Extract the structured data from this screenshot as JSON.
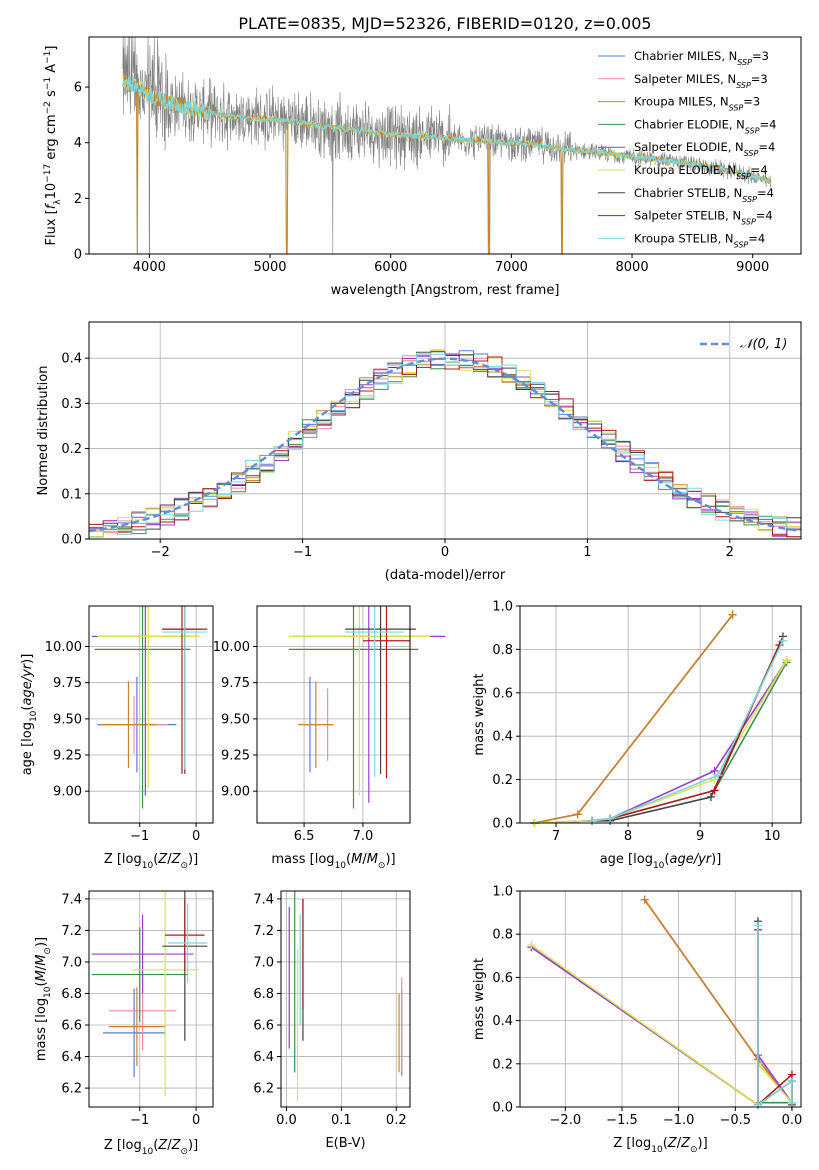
{
  "figure_title": "PLATE=0835, MJD=52326, FIBERID=0120, z=0.005",
  "series_styles": [
    {
      "name": "Chabrier MILES, N",
      "sub": "SSP",
      "suffix": "=3",
      "color": "#5b7bd5"
    },
    {
      "name": "Salpeter MILES, N",
      "sub": "SSP",
      "suffix": "=3",
      "color": "#f08aa6"
    },
    {
      "name": "Kroupa MILES, N",
      "sub": "SSP",
      "suffix": "=3",
      "color": "#c8842c"
    },
    {
      "name": "Chabrier ELODIE, N",
      "sub": "SSP",
      "suffix": "=4",
      "color": "#3f8f50"
    },
    {
      "name": "Salpeter ELODIE, N",
      "sub": "SSP",
      "suffix": "=4",
      "color": "#9b3fc9"
    },
    {
      "name": "Kroupa ELODIE, N",
      "sub": "SSP",
      "suffix": "=4",
      "color": "#d9e25a"
    },
    {
      "name": "Chabrier STELIB, N",
      "sub": "SSP",
      "suffix": "=4",
      "color": "#444444"
    },
    {
      "name": "Salpeter STELIB, N",
      "sub": "SSP",
      "suffix": "=4",
      "color": "#b01c1c"
    },
    {
      "name": "Kroupa STELIB, N",
      "sub": "SSP",
      "suffix": "=4",
      "color": "#7fd6de"
    }
  ],
  "chart_data": [
    {
      "id": "spectrum",
      "type": "line",
      "title": "PLATE=0835, MJD=52326, FIBERID=0120, z=0.005",
      "xlabel": "wavelength [Angstrom, rest frame]",
      "ylabel_parts": [
        "Flux [",
        "f",
        "λ",
        "10",
        "−17",
        " erg cm",
        "−2",
        " s",
        "−1",
        " A",
        "−1",
        "]"
      ],
      "xlim": [
        3500,
        9400
      ],
      "ylim": [
        0,
        7.8
      ],
      "xticks": [
        4000,
        5000,
        6000,
        7000,
        8000,
        9000
      ],
      "yticks": [
        0,
        2,
        4,
        6
      ],
      "grid": false,
      "legend": "upper right",
      "data_color": "#808080",
      "model_profile": {
        "x": [
          3780,
          3850,
          3950,
          4050,
          4200,
          4400,
          4600,
          4800,
          5000,
          5200,
          5400,
          5600,
          5800,
          6000,
          6200,
          6400,
          6600,
          6800,
          7000,
          7200,
          7400,
          7600,
          7800,
          8000,
          8200,
          8400,
          8600,
          8800,
          9000,
          9150
        ],
        "y": [
          6.3,
          6.1,
          5.9,
          5.6,
          5.4,
          5.2,
          5.0,
          4.9,
          4.85,
          4.75,
          4.6,
          4.5,
          4.4,
          4.3,
          4.25,
          4.2,
          4.1,
          4.05,
          4.0,
          3.95,
          3.8,
          3.7,
          3.6,
          3.5,
          3.4,
          3.3,
          3.15,
          3.0,
          2.8,
          2.6
        ]
      },
      "data_dropouts": [
        4000,
        5520,
        6820,
        7420
      ],
      "model_dropouts": [
        3900,
        5140,
        6810,
        7420
      ]
    },
    {
      "id": "residuals",
      "type": "step",
      "xlabel": "(data-model)/error",
      "ylabel": "Normed distribution",
      "xlim": [
        -2.5,
        2.5
      ],
      "ylim": [
        0,
        0.48
      ],
      "xticks": [
        -2,
        -1,
        0,
        1,
        2
      ],
      "yticks": [
        0.0,
        0.1,
        0.2,
        0.3,
        0.4
      ],
      "grid": true,
      "legend": "upper right",
      "reference": {
        "label": "𝒩(0, 1)",
        "mean": 0,
        "sigma": 1,
        "color": "#5b8fd9"
      },
      "bin_width": 0.1
    },
    {
      "id": "age-vs-Z",
      "type": "errorbar",
      "xlabel": "Z [log10(Z/Z⊙)]",
      "ylabel": "age  [log10(age/yr)]",
      "xlim": [
        -1.9,
        0.3
      ],
      "ylim": [
        8.78,
        10.28
      ],
      "xticks": [
        -1,
        0
      ],
      "yticks": [
        9.0,
        9.25,
        9.5,
        9.75,
        10.0
      ],
      "grid": true,
      "points": [
        {
          "s": 0,
          "x": -1.05,
          "y": 9.46,
          "xerr": 0.7,
          "yerr": 0.33
        },
        {
          "s": 1,
          "x": -1.1,
          "y": 9.46,
          "xerr": 0.6,
          "yerr": 0.2
        },
        {
          "s": 2,
          "x": -1.2,
          "y": 9.46,
          "xerr": 0.5,
          "yerr": 0.3
        },
        {
          "s": 3,
          "x": -0.95,
          "y": 9.98,
          "xerr": 0.85,
          "yerr": 1.1
        },
        {
          "s": 4,
          "x": -0.9,
          "y": 10.07,
          "xerr": 0.95,
          "yerr": 1.1
        },
        {
          "s": 5,
          "x": -0.85,
          "y": 10.07,
          "xerr": 0.9,
          "yerr": 1.05
        },
        {
          "s": 6,
          "x": -0.2,
          "y": 10.12,
          "xerr": 0.4,
          "yerr": 1.0
        },
        {
          "s": 7,
          "x": -0.25,
          "y": 10.12,
          "xerr": 0.35,
          "yerr": 1.0
        },
        {
          "s": 8,
          "x": -0.2,
          "y": 10.1,
          "xerr": 0.4,
          "yerr": 0.95
        }
      ]
    },
    {
      "id": "age-vs-mass",
      "type": "errorbar",
      "xlabel": "mass [log10(M/M⊙)]",
      "ylabel": "",
      "xlim": [
        6.1,
        7.4
      ],
      "ylim": [
        8.78,
        10.28
      ],
      "xticks": [
        6.5,
        7.0
      ],
      "yticks": [
        9.0,
        9.25,
        9.5,
        9.75,
        10.0
      ],
      "grid": true,
      "points": [
        {
          "s": 0,
          "x": 6.55,
          "y": 9.46,
          "xerr": 0.05,
          "yerr": 0.33
        },
        {
          "s": 1,
          "x": 6.7,
          "y": 9.46,
          "xerr": 0.05,
          "yerr": 0.25
        },
        {
          "s": 2,
          "x": 6.6,
          "y": 9.46,
          "xerr": 0.15,
          "yerr": 0.3
        },
        {
          "s": 3,
          "x": 6.92,
          "y": 9.98,
          "xerr": 0.55,
          "yerr": 1.1
        },
        {
          "s": 4,
          "x": 7.05,
          "y": 10.07,
          "xerr": 0.65,
          "yerr": 1.15
        },
        {
          "s": 5,
          "x": 6.97,
          "y": 10.07,
          "xerr": 0.6,
          "yerr": 1.1
        },
        {
          "s": 6,
          "x": 7.15,
          "y": 10.12,
          "xerr": 0.3,
          "yerr": 1.0
        },
        {
          "s": 7,
          "x": 7.2,
          "y": 10.04,
          "xerr": 0.2,
          "yerr": 0.95
        },
        {
          "s": 8,
          "x": 7.1,
          "y": 10.1,
          "xerr": 0.25,
          "yerr": 1.0
        }
      ]
    },
    {
      "id": "weight-vs-age",
      "type": "line",
      "xlabel": "age  [log10(age/yr)]",
      "ylabel": "mass weight",
      "xlim": [
        6.5,
        10.4
      ],
      "ylim": [
        0,
        1.0
      ],
      "xticks": [
        7,
        8,
        9,
        10
      ],
      "yticks": [
        0.0,
        0.2,
        0.4,
        0.6,
        0.8,
        1.0
      ],
      "grid": true,
      "series": [
        {
          "s": 0,
          "x": [
            6.7,
            7.3,
            9.45
          ],
          "y": [
            0.0,
            0.04,
            0.96
          ]
        },
        {
          "s": 1,
          "x": [
            6.7,
            7.3,
            9.45
          ],
          "y": [
            0.0,
            0.04,
            0.96
          ]
        },
        {
          "s": 2,
          "x": [
            6.7,
            7.3,
            9.45
          ],
          "y": [
            0.0,
            0.04,
            0.96
          ]
        },
        {
          "s": 3,
          "x": [
            6.7,
            7.5,
            7.75,
            9.2,
            10.2
          ],
          "y": [
            0.0,
            0.01,
            0.02,
            0.15,
            0.74
          ]
        },
        {
          "s": 4,
          "x": [
            6.7,
            7.5,
            7.75,
            9.2,
            10.2
          ],
          "y": [
            0.0,
            0.01,
            0.02,
            0.24,
            0.75
          ]
        },
        {
          "s": 5,
          "x": [
            6.7,
            7.5,
            7.75,
            9.2,
            10.2
          ],
          "y": [
            0.0,
            0.01,
            0.02,
            0.2,
            0.75
          ]
        },
        {
          "s": 6,
          "x": [
            7.5,
            7.75,
            9.15,
            10.15
          ],
          "y": [
            0.01,
            0.01,
            0.12,
            0.86
          ]
        },
        {
          "s": 7,
          "x": [
            7.5,
            7.75,
            9.2,
            10.1
          ],
          "y": [
            0.01,
            0.02,
            0.15,
            0.82
          ]
        },
        {
          "s": 8,
          "x": [
            7.5,
            7.75,
            9.25,
            10.15
          ],
          "y": [
            0.01,
            0.02,
            0.22,
            0.84
          ]
        }
      ]
    },
    {
      "id": "mass-vs-Z",
      "type": "errorbar",
      "xlabel": "Z [log10(Z/Z⊙)]",
      "ylabel": "mass [log10(M/M⊙)]",
      "xlim": [
        -1.9,
        0.3
      ],
      "ylim": [
        6.08,
        7.45
      ],
      "xticks": [
        -1,
        0
      ],
      "yticks": [
        6.2,
        6.4,
        6.6,
        6.8,
        7.0,
        7.2,
        7.4
      ],
      "grid": true,
      "points": [
        {
          "s": 0,
          "x": -1.1,
          "y": 6.55,
          "xerr": 0.55,
          "yerr": 0.28
        },
        {
          "s": 1,
          "x": -0.95,
          "y": 6.69,
          "xerr": 0.6,
          "yerr": 0.25
        },
        {
          "s": 2,
          "x": -1.05,
          "y": 6.59,
          "xerr": 0.5,
          "yerr": 0.25
        },
        {
          "s": 3,
          "x": -1.0,
          "y": 6.92,
          "xerr": 0.85,
          "yerr": 0.3
        },
        {
          "s": 4,
          "x": -0.95,
          "y": 7.05,
          "xerr": 0.9,
          "yerr": 0.25
        },
        {
          "s": 5,
          "x": -0.55,
          "y": 6.95,
          "xerr": 0.6,
          "yerr": 0.8
        },
        {
          "s": 6,
          "x": -0.2,
          "y": 7.1,
          "xerr": 0.4,
          "yerr": 0.6
        },
        {
          "s": 7,
          "x": -0.2,
          "y": 7.17,
          "xerr": 0.35,
          "yerr": 0.22
        },
        {
          "s": 8,
          "x": -0.15,
          "y": 7.12,
          "xerr": 0.35,
          "yerr": 0.25
        }
      ]
    },
    {
      "id": "mass-vs-EBV",
      "type": "errorbar",
      "xlabel": "E(B-V)",
      "ylabel": "",
      "xlim": [
        -0.01,
        0.225
      ],
      "ylim": [
        6.08,
        7.45
      ],
      "xticks": [
        0.0,
        0.1,
        0.2
      ],
      "yticks": [
        6.2,
        6.4,
        6.6,
        6.8,
        7.0,
        7.2,
        7.4
      ],
      "grid": true,
      "points": [
        {
          "s": 0,
          "x": 0.21,
          "y": 6.55,
          "xerr": 0,
          "yerr": 0.27
        },
        {
          "s": 1,
          "x": 0.21,
          "y": 6.6,
          "xerr": 0,
          "yerr": 0.3
        },
        {
          "s": 2,
          "x": 0.205,
          "y": 6.55,
          "xerr": 0,
          "yerr": 0.25
        },
        {
          "s": 3,
          "x": 0.015,
          "y": 6.9,
          "xerr": 0,
          "yerr": 0.6
        },
        {
          "s": 4,
          "x": 0.005,
          "y": 6.9,
          "xerr": 0,
          "yerr": 0.45
        },
        {
          "s": 5,
          "x": 0.02,
          "y": 6.6,
          "xerr": 0,
          "yerr": 0.48
        },
        {
          "s": 6,
          "x": 0.03,
          "y": 6.95,
          "xerr": 0,
          "yerr": 0.45
        },
        {
          "s": 7,
          "x": 0.03,
          "y": 7.05,
          "xerr": 0,
          "yerr": 0.35
        },
        {
          "s": 8,
          "x": 0.025,
          "y": 6.95,
          "xerr": 0,
          "yerr": 0.35
        }
      ]
    },
    {
      "id": "weight-vs-Z",
      "type": "line",
      "xlabel": "Z [log10(Z/Z⊙)]",
      "ylabel": "mass weight",
      "xlim": [
        -2.4,
        0.08
      ],
      "ylim": [
        0,
        1.0
      ],
      "xticks": [
        -2.0,
        -1.5,
        -1.0,
        -0.5,
        0.0
      ],
      "yticks": [
        0.0,
        0.2,
        0.4,
        0.6,
        0.8,
        1.0
      ],
      "grid": true,
      "series": [
        {
          "s": 0,
          "x": [
            -1.3,
            -0.3,
            0.0
          ],
          "y": [
            0.96,
            0.22,
            0.02
          ]
        },
        {
          "s": 1,
          "x": [
            -1.3,
            -0.3,
            0.0
          ],
          "y": [
            0.96,
            0.22,
            0.02
          ]
        },
        {
          "s": 2,
          "x": [
            -1.3,
            -0.3,
            0.0
          ],
          "y": [
            0.96,
            0.22,
            0.02
          ]
        },
        {
          "s": 3,
          "x": [
            -2.3,
            -0.3,
            -0.3,
            0.0
          ],
          "y": [
            0.74,
            0.01,
            0.02,
            0.02
          ]
        },
        {
          "s": 4,
          "x": [
            -2.3,
            -0.3,
            -0.3,
            0.0
          ],
          "y": [
            0.74,
            0.01,
            0.24,
            0.02
          ]
        },
        {
          "s": 5,
          "x": [
            -2.3,
            -0.3,
            -0.3,
            0.0
          ],
          "y": [
            0.75,
            0.01,
            0.2,
            0.02
          ]
        },
        {
          "s": 6,
          "x": [
            -0.3,
            -0.3,
            0.0,
            0.0
          ],
          "y": [
            0.86,
            0.01,
            0.12,
            0.01
          ]
        },
        {
          "s": 7,
          "x": [
            -0.3,
            -0.3,
            0.0,
            0.0
          ],
          "y": [
            0.82,
            0.01,
            0.15,
            0.02
          ]
        },
        {
          "s": 8,
          "x": [
            -0.3,
            -0.3,
            0.0,
            0.0
          ],
          "y": [
            0.84,
            0.01,
            0.12,
            0.02
          ]
        }
      ]
    }
  ]
}
